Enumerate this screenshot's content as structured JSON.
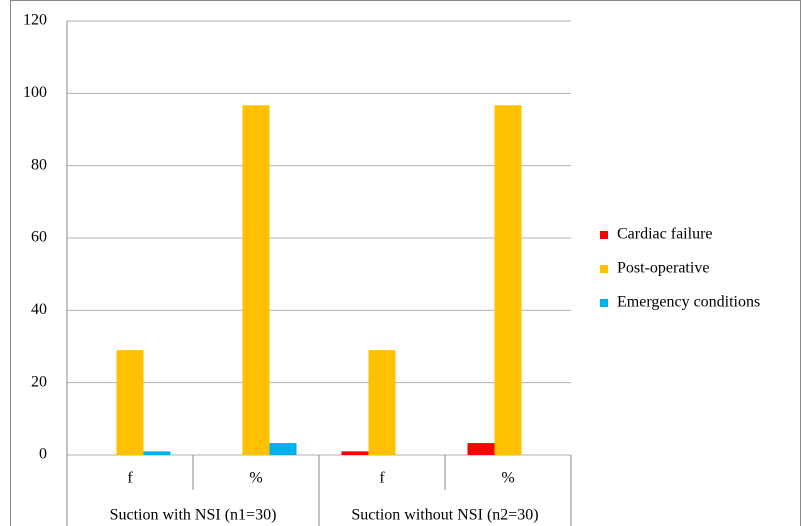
{
  "chart_data": {
    "type": "bar",
    "categories": [
      "f",
      "%",
      "f",
      "%"
    ],
    "groups": [
      "Suction with NSI (n1=30)",
      "Suction without NSI (n2=30)"
    ],
    "series": [
      {
        "name": "Cardiac failure",
        "color": "#ff0000",
        "values": [
          0,
          0,
          1,
          3.3
        ]
      },
      {
        "name": "Post-operative",
        "color": "#ffc000",
        "values": [
          29,
          96.7,
          29,
          96.7
        ]
      },
      {
        "name": "Emergency conditions",
        "color": "#00b0f0",
        "values": [
          1,
          3.3,
          0,
          0
        ]
      }
    ],
    "ylim": [
      0,
      120
    ],
    "yticks": [
      0,
      20,
      40,
      60,
      80,
      100,
      120
    ],
    "grid": true,
    "legend": "right"
  }
}
